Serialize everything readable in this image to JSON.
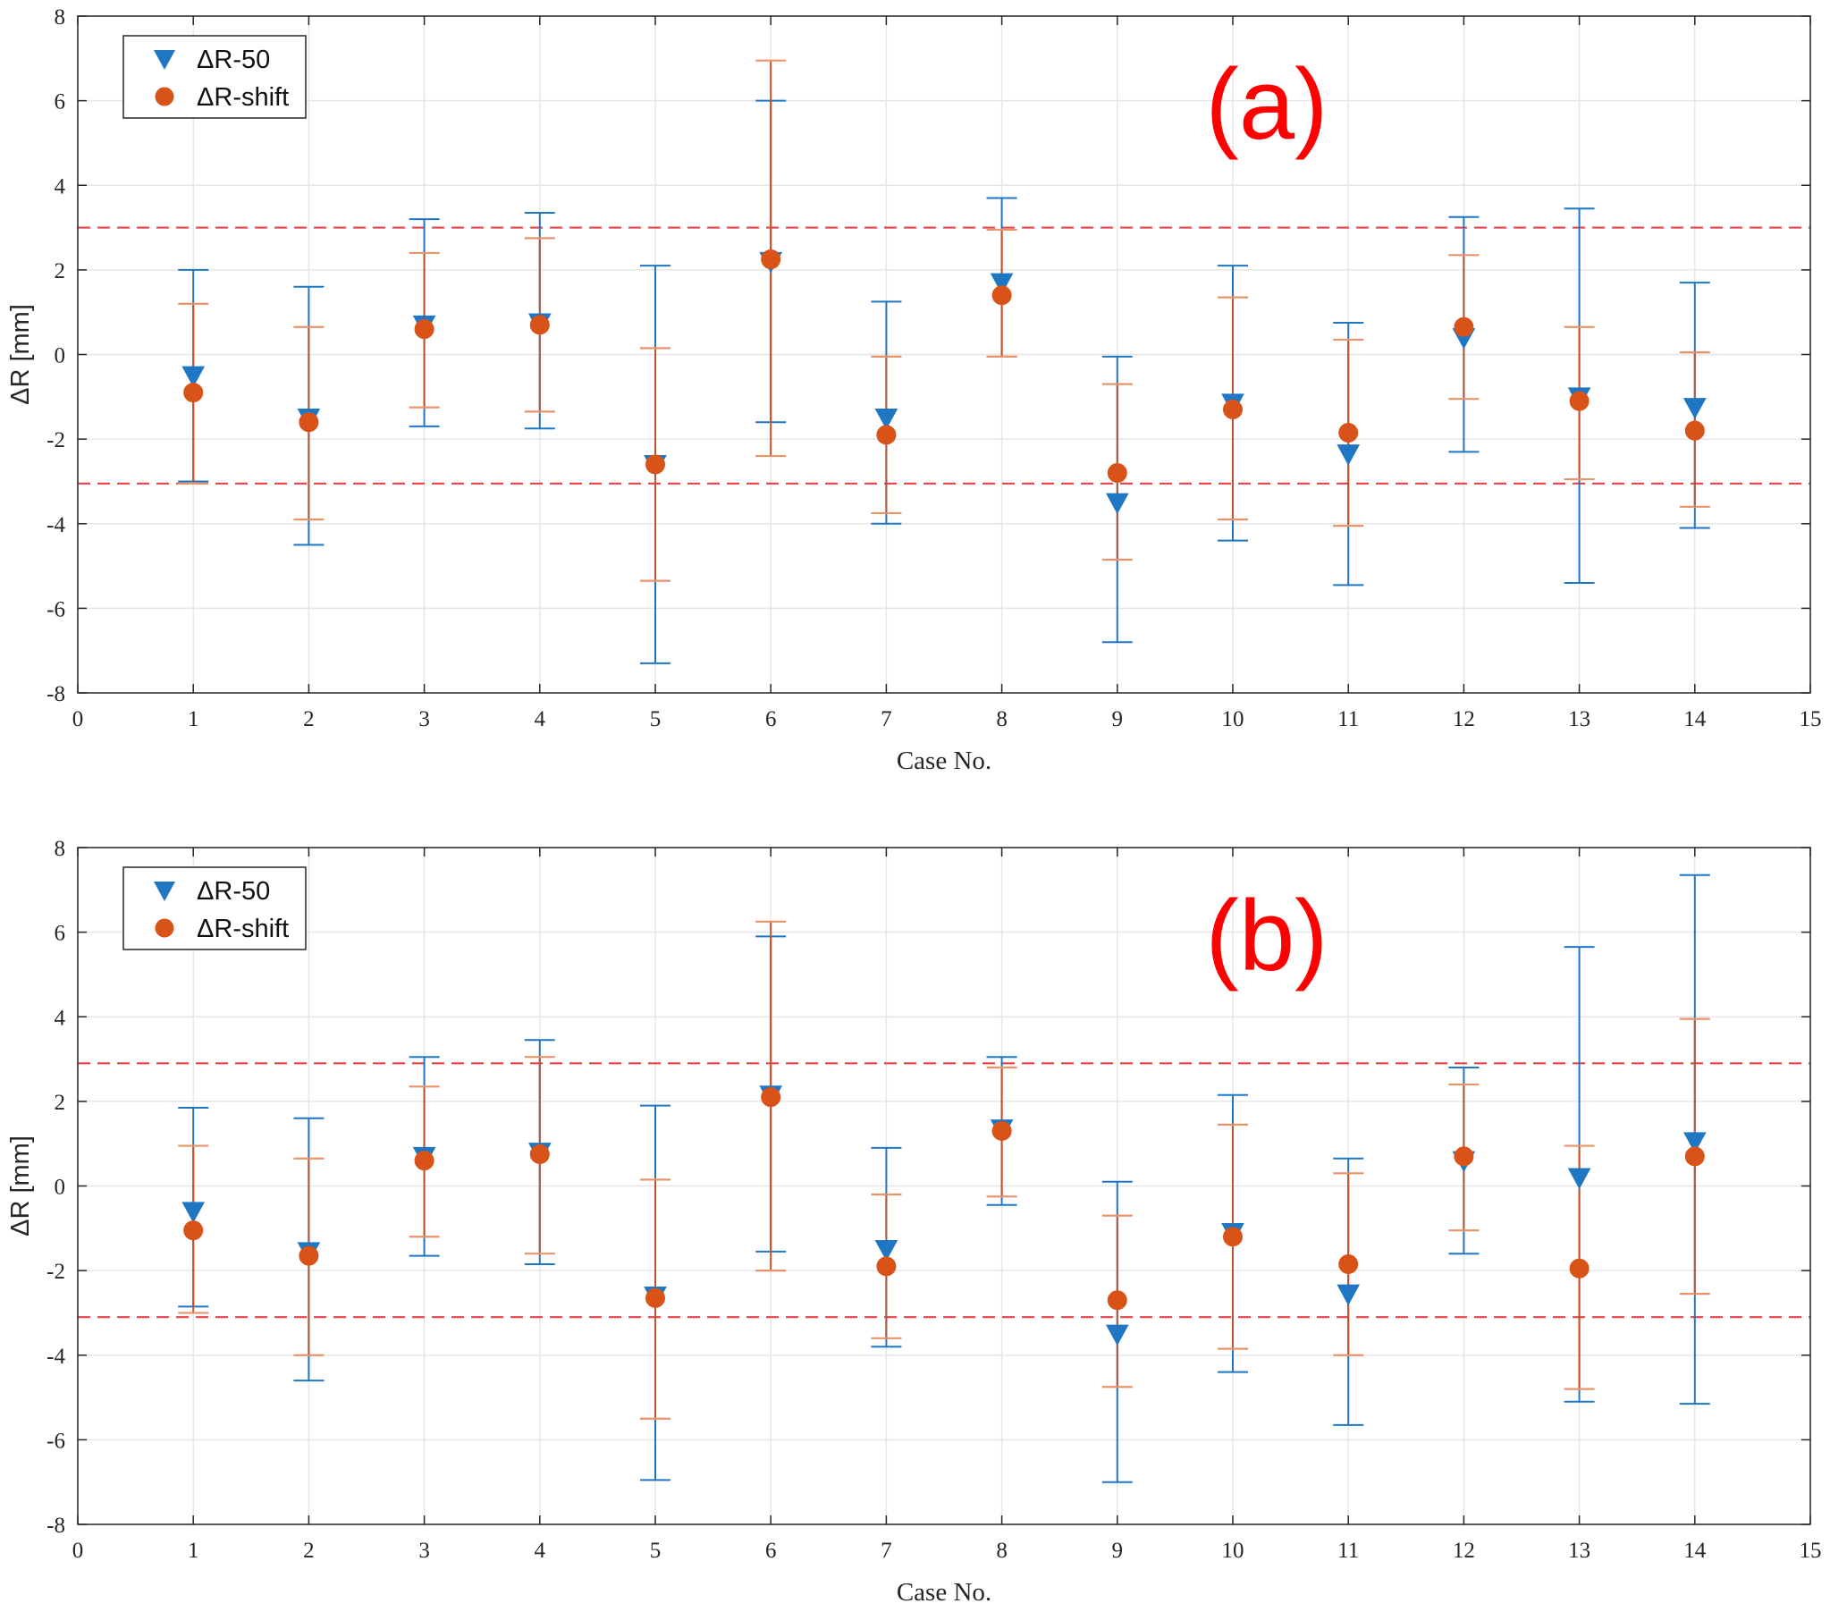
{
  "colors": {
    "r50": "#1f77c4",
    "shift": "#d95319",
    "shift_bar": "#c0522c",
    "shift_cap": "#e8936a",
    "threshold": "#e8414a",
    "grid": "#e6e6e6",
    "axis": "#262626"
  },
  "chart_data": [
    {
      "type": "scatter",
      "panel_label": "(a)",
      "xlabel": "Case No.",
      "ylabel": "ΔR [mm]",
      "xlim": [
        0,
        15
      ],
      "ylim": [
        -8,
        8
      ],
      "x_ticks": [
        "0",
        "1",
        "2",
        "3",
        "4",
        "5",
        "6",
        "7",
        "8",
        "9",
        "10",
        "11",
        "12",
        "13",
        "14",
        "15"
      ],
      "y_ticks": [
        "8",
        "6",
        "4",
        "2",
        "0",
        "-2",
        "-4",
        "-6",
        "-8"
      ],
      "grid": true,
      "legend": {
        "position": "top-left",
        "entries": [
          "ΔR-50",
          "ΔR-shift"
        ]
      },
      "thresholds": [
        3.0,
        -3.05
      ],
      "series": [
        {
          "name": "ΔR-50",
          "marker": "triangle-down",
          "x": [
            1,
            2,
            3,
            4,
            5,
            6,
            7,
            8,
            9,
            10,
            11,
            12,
            13,
            14
          ],
          "y": [
            -0.5,
            -1.5,
            0.7,
            0.75,
            -2.6,
            2.2,
            -1.5,
            1.7,
            -3.5,
            -1.15,
            -2.35,
            0.4,
            -1.0,
            -1.25
          ],
          "err_low": [
            -3.0,
            -4.5,
            -1.7,
            -1.75,
            -7.3,
            -1.6,
            -4.0,
            -0.05,
            -6.8,
            -4.4,
            -5.45,
            -2.3,
            -5.4,
            -4.1
          ],
          "err_high": [
            2.0,
            1.6,
            3.2,
            3.35,
            2.1,
            6.0,
            1.25,
            3.7,
            -0.05,
            2.1,
            0.75,
            3.25,
            3.45,
            1.7
          ]
        },
        {
          "name": "ΔR-shift",
          "marker": "circle",
          "x": [
            1,
            2,
            3,
            4,
            5,
            6,
            7,
            8,
            9,
            10,
            11,
            12,
            13,
            14
          ],
          "y": [
            -0.9,
            -1.6,
            0.6,
            0.7,
            -2.6,
            2.25,
            -1.9,
            1.4,
            -2.8,
            -1.3,
            -1.85,
            0.65,
            -1.1,
            -1.8
          ],
          "err_low": [
            -3.05,
            -3.9,
            -1.25,
            -1.35,
            -5.35,
            -2.4,
            -3.75,
            -0.05,
            -4.85,
            -3.9,
            -4.05,
            -1.05,
            -2.95,
            -3.6
          ],
          "err_high": [
            1.2,
            0.65,
            2.4,
            2.75,
            0.15,
            6.95,
            -0.05,
            2.95,
            -0.7,
            1.35,
            0.35,
            2.35,
            0.65,
            0.05
          ]
        }
      ]
    },
    {
      "type": "scatter",
      "panel_label": "(b)",
      "xlabel": "Case No.",
      "ylabel": "ΔR [mm]",
      "xlim": [
        0,
        15
      ],
      "ylim": [
        -8,
        8
      ],
      "x_ticks": [
        "0",
        "1",
        "2",
        "3",
        "4",
        "5",
        "6",
        "7",
        "8",
        "9",
        "10",
        "11",
        "12",
        "13",
        "14",
        "15"
      ],
      "y_ticks": [
        "8",
        "6",
        "4",
        "2",
        "0",
        "-2",
        "-4",
        "-6",
        "-8"
      ],
      "grid": true,
      "legend": {
        "position": "top-left",
        "entries": [
          "ΔR-50",
          "ΔR-shift"
        ]
      },
      "thresholds": [
        2.9,
        -3.1
      ],
      "series": [
        {
          "name": "ΔR-50",
          "marker": "triangle-down",
          "x": [
            1,
            2,
            3,
            4,
            5,
            6,
            7,
            8,
            9,
            10,
            11,
            12,
            13,
            14
          ],
          "y": [
            -0.6,
            -1.55,
            0.7,
            0.8,
            -2.6,
            2.15,
            -1.5,
            1.35,
            -3.5,
            -1.1,
            -2.55,
            0.6,
            0.2,
            1.05
          ],
          "err_low": [
            -2.85,
            -4.6,
            -1.65,
            -1.85,
            -6.95,
            -1.55,
            -3.8,
            -0.45,
            -7.0,
            -4.4,
            -5.65,
            -1.6,
            -5.1,
            -5.15
          ],
          "err_high": [
            1.85,
            1.6,
            3.05,
            3.45,
            1.9,
            5.9,
            0.9,
            3.05,
            0.1,
            2.15,
            0.65,
            2.8,
            5.65,
            7.35
          ]
        },
        {
          "name": "ΔR-shift",
          "marker": "circle",
          "x": [
            1,
            2,
            3,
            4,
            5,
            6,
            7,
            8,
            9,
            10,
            11,
            12,
            13,
            14
          ],
          "y": [
            -1.05,
            -1.65,
            0.6,
            0.75,
            -2.65,
            2.1,
            -1.9,
            1.3,
            -2.7,
            -1.2,
            -1.85,
            0.7,
            -1.95,
            0.7
          ],
          "err_low": [
            -3.0,
            -4.0,
            -1.2,
            -1.6,
            -5.5,
            -2.0,
            -3.6,
            -0.25,
            -4.75,
            -3.85,
            -4.0,
            -1.05,
            -4.8,
            -2.55
          ],
          "err_high": [
            0.95,
            0.65,
            2.35,
            3.05,
            0.15,
            6.25,
            -0.2,
            2.8,
            -0.7,
            1.45,
            0.3,
            2.4,
            0.95,
            3.95
          ]
        }
      ]
    }
  ]
}
